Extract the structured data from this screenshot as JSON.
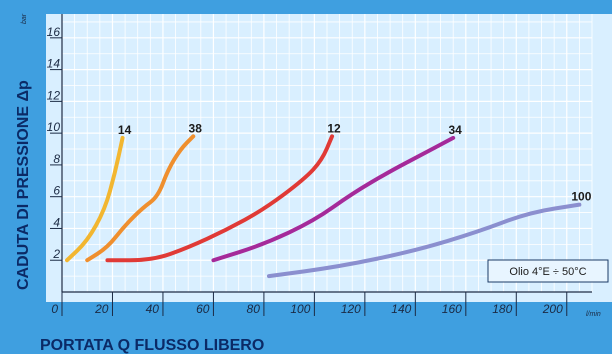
{
  "chart_data": {
    "type": "line",
    "ylabel": "CADUTA DI PRESSIONE Δp",
    "xlabel": "PORTATA Q FLUSSO LIBERO",
    "y_unit": "bar",
    "x_unit": "l/min",
    "xlim": [
      0,
      210
    ],
    "ylim": [
      0,
      17.5
    ],
    "x_ticks": [
      0,
      20,
      40,
      60,
      80,
      100,
      120,
      140,
      160,
      180,
      200
    ],
    "y_ticks": [
      2,
      4,
      6,
      8,
      10,
      12,
      14,
      16
    ],
    "grid": true,
    "note": "Olio 4°E ÷ 50°C",
    "series": [
      {
        "name": "14",
        "color": "#f2b630",
        "points": [
          [
            2,
            2
          ],
          [
            10,
            3.2
          ],
          [
            17,
            5.2
          ],
          [
            21,
            7.5
          ],
          [
            24,
            9.7
          ]
        ]
      },
      {
        "name": "38",
        "color": "#ef8f2e",
        "points": [
          [
            10,
            2
          ],
          [
            18,
            2.8
          ],
          [
            25,
            4.2
          ],
          [
            32,
            5.3
          ],
          [
            38,
            6
          ],
          [
            42,
            7.7
          ],
          [
            47,
            9
          ],
          [
            52,
            9.8
          ]
        ]
      },
      {
        "name": "12",
        "color": "#e03a36",
        "points": [
          [
            18,
            2
          ],
          [
            36,
            2
          ],
          [
            50,
            2.8
          ],
          [
            65,
            3.9
          ],
          [
            80,
            5.2
          ],
          [
            96,
            7.1
          ],
          [
            103,
            8.3
          ],
          [
            107,
            9.8
          ]
        ]
      },
      {
        "name": "34",
        "color": "#a52a9a",
        "points": [
          [
            60,
            2
          ],
          [
            80,
            3
          ],
          [
            100,
            4.5
          ],
          [
            115,
            6.2
          ],
          [
            130,
            7.6
          ],
          [
            142,
            8.6
          ],
          [
            155,
            9.7
          ]
        ]
      },
      {
        "name": "100",
        "color": "#8b8fcf",
        "points": [
          [
            82,
            1
          ],
          [
            110,
            1.6
          ],
          [
            140,
            2.6
          ],
          [
            165,
            3.8
          ],
          [
            185,
            5
          ],
          [
            205,
            5.5
          ]
        ]
      }
    ]
  }
}
